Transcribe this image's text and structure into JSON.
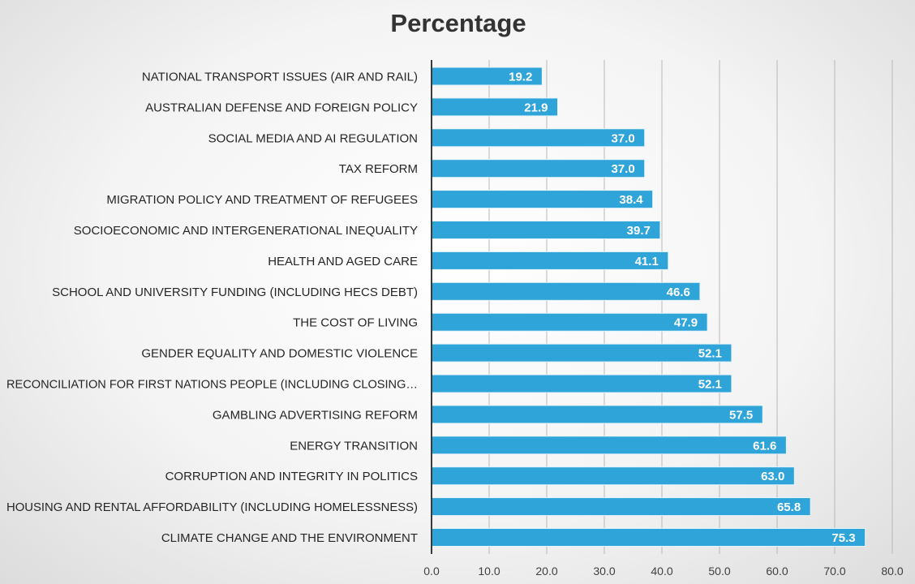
{
  "chart_data": {
    "type": "bar",
    "orientation": "horizontal",
    "title": "Percentage",
    "categories": [
      "NATIONAL TRANSPORT ISSUES (AIR AND RAIL)",
      "AUSTRALIAN DEFENSE AND FOREIGN POLICY",
      "SOCIAL MEDIA AND AI REGULATION",
      "TAX REFORM",
      "MIGRATION POLICY AND TREATMENT OF REFUGEES",
      "SOCIOECONOMIC AND INTERGENERATIONAL INEQUALITY",
      "HEALTH AND AGED CARE",
      "SCHOOL AND UNIVERSITY FUNDING (INCLUDING HECS DEBT)",
      "THE COST OF LIVING",
      "GENDER EQUALITY AND DOMESTIC VIOLENCE",
      "RECONCILIATION FOR FIRST NATIONS PEOPLE (INCLUDING CLOSING…",
      "GAMBLING ADVERTISING REFORM",
      "ENERGY TRANSITION",
      "CORRUPTION AND INTEGRITY IN POLITICS",
      "HOUSING AND RENTAL AFFORDABILITY (INCLUDING HOMELESSNESS)",
      "CLIMATE CHANGE AND THE ENVIRONMENT"
    ],
    "values": [
      19.2,
      21.9,
      37.0,
      37.0,
      38.4,
      39.7,
      41.1,
      46.6,
      47.9,
      52.1,
      52.1,
      57.5,
      61.6,
      63.0,
      65.8,
      75.3
    ],
    "data_labels": [
      "19.2",
      "21.9",
      "37.0",
      "37.0",
      "38.4",
      "39.7",
      "41.1",
      "46.6",
      "47.9",
      "52.1",
      "52.1",
      "57.5",
      "61.6",
      "63.0",
      "65.8",
      "75.3"
    ],
    "xlim": [
      0,
      80
    ],
    "x_ticks": [
      "0.0",
      "10.0",
      "20.0",
      "30.0",
      "40.0",
      "50.0",
      "60.0",
      "70.0",
      "80.0"
    ],
    "grid": true,
    "legend": false,
    "bar_color": "#2fa4d8",
    "bar_edge_color": "#e6f4fb"
  }
}
